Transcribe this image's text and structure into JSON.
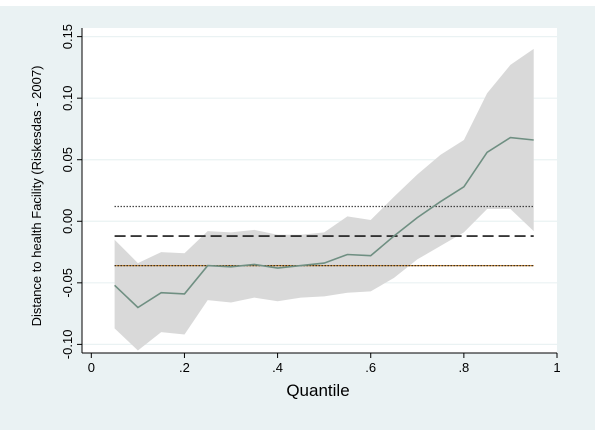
{
  "colors": {
    "outer_background": "#eaf2f3",
    "plot_background": "#ffffff",
    "gridline": "#eaf2f3",
    "ci_band": "#d9d9d9",
    "estimate_line": "#6f8f82",
    "dashed_line": "#1a1a1a",
    "dotted_line": "#1a1a1a",
    "dotted_lower_accent": "#c98a3a"
  },
  "chart_data": {
    "type": "line",
    "title": "",
    "xlabel": "Quantile",
    "ylabel": "Distance to health Facility  (Riskesdas - 2007)",
    "xlim": [
      -0.02,
      1.0
    ],
    "ylim": [
      -0.107,
      0.157
    ],
    "x_ticks": [
      0,
      0.2,
      0.4,
      0.6,
      0.8,
      1
    ],
    "x_tick_labels": [
      "0",
      ".2",
      ".4",
      ".6",
      ".8",
      "1"
    ],
    "y_ticks": [
      -0.1,
      -0.05,
      0.0,
      0.05,
      0.1,
      0.15
    ],
    "y_tick_labels": [
      "-0.10",
      "-0.05",
      "0.00",
      "0.05",
      "0.10",
      "0.15"
    ],
    "grid": true,
    "legend": "none",
    "x": [
      0.05,
      0.1,
      0.15,
      0.2,
      0.25,
      0.3,
      0.35,
      0.4,
      0.45,
      0.5,
      0.55,
      0.6,
      0.65,
      0.7,
      0.75,
      0.8,
      0.85,
      0.9,
      0.95
    ],
    "series": [
      {
        "role": "estimate",
        "values": [
          -0.052,
          -0.07,
          -0.058,
          -0.059,
          -0.036,
          -0.037,
          -0.035,
          -0.038,
          -0.036,
          -0.034,
          -0.027,
          -0.028,
          -0.012,
          0.003,
          0.016,
          0.028,
          0.056,
          0.068,
          0.066
        ]
      },
      {
        "role": "ci_upper",
        "values": [
          -0.015,
          -0.034,
          -0.025,
          -0.026,
          -0.008,
          -0.009,
          -0.007,
          -0.011,
          -0.011,
          -0.009,
          0.004,
          0.001,
          0.02,
          0.038,
          0.054,
          0.066,
          0.104,
          0.127,
          0.14
        ]
      },
      {
        "role": "ci_lower",
        "values": [
          -0.087,
          -0.105,
          -0.09,
          -0.092,
          -0.064,
          -0.066,
          -0.062,
          -0.065,
          -0.062,
          -0.061,
          -0.058,
          -0.057,
          -0.046,
          -0.031,
          -0.02,
          -0.009,
          0.01,
          0.01,
          -0.008
        ]
      }
    ],
    "reference_lines": [
      {
        "style": "dashed",
        "y": -0.012,
        "x_range": [
          0.05,
          0.95
        ]
      },
      {
        "style": "dotted",
        "y": 0.012,
        "x_range": [
          0.05,
          0.95
        ]
      },
      {
        "style": "dotted",
        "y": -0.036,
        "x_range": [
          0.05,
          0.95
        ]
      }
    ]
  }
}
